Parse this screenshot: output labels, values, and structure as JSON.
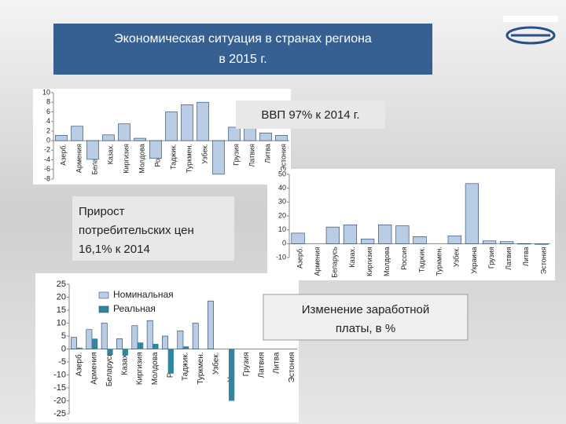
{
  "slide": {
    "title": "Экономическая ситуация в странах региона в 2015 г.",
    "captions": [
      "ВВП 97% к 2014 г.",
      "Прирост потребительских цен 16,1% к 2014 г.",
      "Изменение заработной платы, в %"
    ]
  },
  "chart_data": [
    {
      "type": "bar",
      "categories": [
        "Азерб.",
        "Армения",
        "Беларусь",
        "Казах.",
        "Киргизия",
        "Молдова",
        "Россия",
        "Таджик.",
        "Туркмен.",
        "Узбек.",
        "Украина",
        "Грузия",
        "Латвия",
        "Литва",
        "Эстония"
      ],
      "values": [
        1.1,
        3.0,
        -3.9,
        1.2,
        3.5,
        0.5,
        -3.7,
        6.0,
        7.5,
        8.0,
        -7.0,
        2.8,
        2.7,
        1.6,
        1.1
      ],
      "color": "#b8cce4",
      "ylim": [
        -8,
        10
      ],
      "yticks": [
        10,
        8,
        6,
        4,
        2,
        0,
        -2,
        -4,
        -6,
        -8
      ]
    },
    {
      "type": "bar",
      "categories": [
        "Азерб.",
        "Армения",
        "Беларусь",
        "Казах.",
        "Киргизия",
        "Молдова",
        "Россия",
        "Таджик.",
        "Туркмен.",
        "Узбек.",
        "Украина",
        "Грузия",
        "Латвия",
        "Литва",
        "Эстония"
      ],
      "values": [
        7.6,
        0,
        12.0,
        13.6,
        3.4,
        13.6,
        12.9,
        5.1,
        0,
        5.6,
        43.3,
        2.0,
        1.5,
        -0.3,
        -0.5
      ],
      "color": "#b8cce4",
      "ylim": [
        -10,
        50
      ],
      "yticks": [
        50,
        40,
        30,
        20,
        10,
        0,
        -10
      ]
    },
    {
      "type": "bar",
      "categories": [
        "Азерб.",
        "Армения",
        "Беларусь",
        "Казах.",
        "Киргизия",
        "Молдова",
        "Россия",
        "Таджик.",
        "Туркмен.",
        "Узбек.",
        "Украина",
        "Грузия",
        "Латвия",
        "Литва",
        "Эстония"
      ],
      "series": [
        {
          "name": "Номинальная",
          "color": "#b8cce4",
          "values": [
            4.5,
            7.5,
            10,
            4,
            9,
            11,
            5,
            7,
            10,
            18.5,
            null,
            null,
            null,
            null,
            null
          ]
        },
        {
          "name": "Реальная",
          "color": "#31859c",
          "values": [
            0.5,
            4,
            -2.3,
            -2.5,
            2.5,
            2,
            -9.5,
            1,
            null,
            null,
            -20,
            null,
            null,
            null,
            null
          ]
        }
      ],
      "ylim": [
        -25,
        25
      ],
      "yticks": [
        25,
        20,
        15,
        10,
        5,
        0,
        -5,
        -10,
        -15,
        -20,
        -25
      ],
      "legend": "upper-left"
    }
  ]
}
